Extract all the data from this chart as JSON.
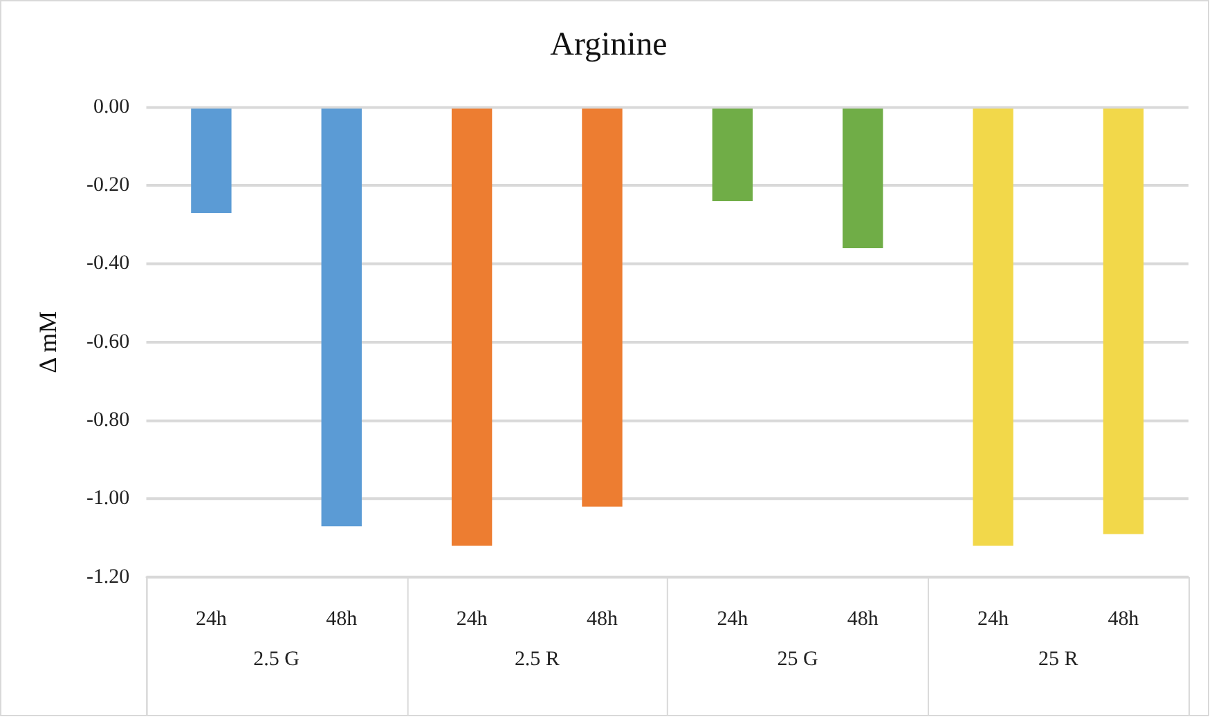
{
  "chart_data": {
    "type": "bar",
    "title": "Arginine",
    "ylabel": "Δ mM",
    "categories": [
      "24h",
      "48h",
      "24h",
      "48h",
      "24h",
      "48h",
      "24h",
      "48h"
    ],
    "series": [
      {
        "color": "#5b9bd5",
        "values": [
          -0.27,
          -1.07,
          null,
          null,
          null,
          null,
          null,
          null
        ]
      },
      {
        "color": "#ed7d31",
        "values": [
          null,
          null,
          -1.12,
          -1.02,
          null,
          null,
          null,
          null
        ]
      },
      {
        "color": "#70ad47",
        "values": [
          null,
          null,
          null,
          null,
          -0.24,
          -0.36,
          null,
          null
        ]
      },
      {
        "color": "#f2d84a",
        "values": [
          null,
          null,
          null,
          null,
          null,
          null,
          -1.12,
          -1.09
        ]
      }
    ],
    "ylim": [
      -1.2,
      0
    ],
    "yticks": [
      {
        "value": 0,
        "label": "0.00"
      },
      {
        "value": -0.2,
        "label": "-0.20"
      },
      {
        "value": -0.4,
        "label": "-0.40"
      },
      {
        "value": -0.6,
        "label": "-0.60"
      },
      {
        "value": -0.8,
        "label": "-0.80"
      },
      {
        "value": -1.0,
        "label": "-1.00"
      },
      {
        "value": -1.2,
        "label": "-1.20"
      }
    ],
    "annotations": [
      "2.5 G",
      "2.5 R",
      "25 G",
      "25 R"
    ],
    "grid": "y",
    "legend": false
  }
}
